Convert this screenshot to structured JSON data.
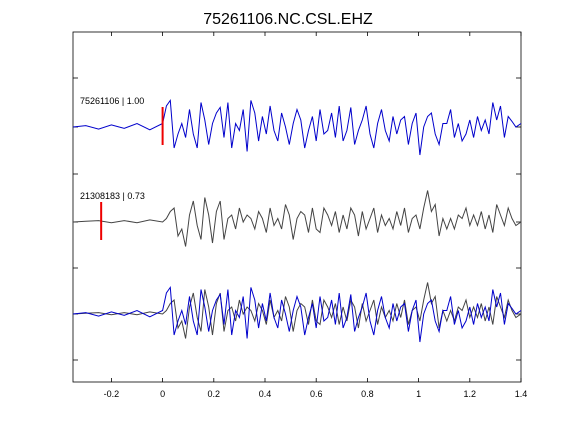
{
  "chart_data": {
    "type": "line",
    "title": "75261106.NC.CSL.EHZ",
    "xlabel": "",
    "ylabel": "",
    "xlim": [
      -0.35,
      1.4
    ],
    "x_ticks": [
      -0.2,
      0,
      0.2,
      0.4,
      0.6,
      0.8,
      1,
      1.2,
      1.4
    ],
    "x_tick_labels": [
      "-0.2",
      "0",
      "0.2",
      "0.4",
      "0.6",
      "0.8",
      "1",
      "1.2",
      "1.4"
    ],
    "grid": false,
    "legend": "none",
    "colors": {
      "primary": "#0000cc",
      "secondary": "#444444",
      "pick": "#ee0000",
      "frame": "#000000"
    },
    "traces": [
      {
        "label": "75261106 | 1.00",
        "pick_time": 0.0
      },
      {
        "label": "21308183 | 0.73",
        "pick_time": -0.24
      }
    ],
    "series": [
      {
        "color": "#0000cc",
        "x": [
          -0.35,
          -0.3,
          -0.25,
          -0.2,
          -0.15,
          -0.1,
          -0.05,
          0.0,
          0.015,
          0.03,
          0.045,
          0.06,
          0.075,
          0.09,
          0.105,
          0.12,
          0.135,
          0.15,
          0.165,
          0.18,
          0.195,
          0.21,
          0.225,
          0.24,
          0.255,
          0.27,
          0.285,
          0.3,
          0.315,
          0.33,
          0.345,
          0.36,
          0.375,
          0.39,
          0.405,
          0.42,
          0.435,
          0.45,
          0.465,
          0.48,
          0.495,
          0.51,
          0.525,
          0.54,
          0.555,
          0.57,
          0.585,
          0.6,
          0.615,
          0.63,
          0.645,
          0.66,
          0.675,
          0.69,
          0.705,
          0.72,
          0.735,
          0.75,
          0.765,
          0.78,
          0.795,
          0.81,
          0.825,
          0.84,
          0.855,
          0.87,
          0.885,
          0.9,
          0.915,
          0.93,
          0.945,
          0.96,
          0.975,
          0.99,
          1.005,
          1.02,
          1.035,
          1.05,
          1.065,
          1.08,
          1.095,
          1.11,
          1.125,
          1.14,
          1.155,
          1.17,
          1.185,
          1.2,
          1.215,
          1.23,
          1.245,
          1.26,
          1.275,
          1.29,
          1.305,
          1.32,
          1.335,
          1.35,
          1.365,
          1.38,
          1.4
        ],
        "y": [
          0.0,
          0.02,
          -0.03,
          0.03,
          -0.02,
          0.05,
          -0.04,
          0.05,
          0.3,
          0.38,
          -0.3,
          -0.1,
          0.05,
          -0.15,
          0.25,
          -0.1,
          -0.3,
          0.35,
          0.1,
          -0.25,
          0.05,
          0.2,
          0.28,
          -0.15,
          0.35,
          -0.3,
          0.05,
          -0.05,
          0.25,
          -0.35,
          0.38,
          0.2,
          -0.2,
          0.15,
          -0.1,
          0.3,
          -0.05,
          -0.2,
          0.2,
          0.0,
          -0.25,
          0.05,
          0.25,
          0.1,
          -0.3,
          -0.05,
          0.15,
          -0.2,
          0.25,
          -0.1,
          -0.05,
          0.2,
          -0.15,
          0.3,
          -0.2,
          -0.05,
          0.28,
          -0.25,
          -0.05,
          0.1,
          0.3,
          -0.1,
          -0.3,
          0.05,
          0.25,
          -0.05,
          -0.2,
          0.15,
          -0.1,
          0.1,
          0.15,
          -0.25,
          0.05,
          0.2,
          -0.4,
          0.0,
          0.15,
          0.2,
          -0.1,
          -0.25,
          0.05,
          0.05,
          0.25,
          -0.15,
          0.05,
          -0.2,
          -0.1,
          0.1,
          -0.15,
          0.15,
          -0.05,
          0.1,
          -0.1,
          0.35,
          0.1,
          0.3,
          -0.15,
          0.15,
          0.08,
          0.0,
          0.05
        ]
      },
      {
        "color": "#444444",
        "x": [
          -0.35,
          -0.3,
          -0.25,
          -0.2,
          -0.15,
          -0.1,
          -0.05,
          0.0,
          0.015,
          0.03,
          0.045,
          0.06,
          0.075,
          0.09,
          0.105,
          0.12,
          0.135,
          0.15,
          0.165,
          0.18,
          0.195,
          0.21,
          0.225,
          0.24,
          0.255,
          0.27,
          0.285,
          0.3,
          0.315,
          0.33,
          0.345,
          0.36,
          0.375,
          0.39,
          0.405,
          0.42,
          0.435,
          0.45,
          0.465,
          0.48,
          0.495,
          0.51,
          0.525,
          0.54,
          0.555,
          0.57,
          0.585,
          0.6,
          0.615,
          0.63,
          0.645,
          0.66,
          0.675,
          0.69,
          0.705,
          0.72,
          0.735,
          0.75,
          0.765,
          0.78,
          0.795,
          0.81,
          0.825,
          0.84,
          0.855,
          0.87,
          0.885,
          0.9,
          0.915,
          0.93,
          0.945,
          0.96,
          0.975,
          0.99,
          1.005,
          1.02,
          1.035,
          1.05,
          1.065,
          1.08,
          1.095,
          1.11,
          1.125,
          1.14,
          1.155,
          1.17,
          1.185,
          1.2,
          1.215,
          1.23,
          1.245,
          1.26,
          1.275,
          1.29,
          1.305,
          1.32,
          1.335,
          1.35,
          1.365,
          1.38,
          1.4
        ],
        "y": [
          0.0,
          0.01,
          0.02,
          -0.01,
          0.02,
          -0.01,
          0.03,
          0.0,
          0.05,
          0.15,
          0.2,
          -0.2,
          -0.1,
          -0.35,
          0.1,
          0.3,
          -0.05,
          -0.25,
          0.35,
          0.1,
          -0.3,
          0.15,
          0.3,
          -0.25,
          0.05,
          0.1,
          -0.1,
          0.2,
          0.0,
          0.1,
          0.05,
          -0.1,
          0.15,
          0.05,
          -0.15,
          0.2,
          -0.05,
          0.05,
          -0.1,
          0.25,
          0.1,
          -0.25,
          0.05,
          0.15,
          0.1,
          -0.15,
          0.2,
          -0.1,
          -0.15,
          0.2,
          0.1,
          -0.05,
          0.15,
          -0.15,
          0.1,
          -0.1,
          0.2,
          0.1,
          -0.2,
          0.15,
          -0.1,
          0.05,
          0.2,
          -0.15,
          0.1,
          -0.05,
          0.05,
          -0.1,
          0.15,
          -0.05,
          0.2,
          -0.15,
          0.05,
          0.1,
          -0.1,
          0.2,
          0.45,
          0.15,
          0.25,
          -0.2,
          0.05,
          -0.1,
          0.05,
          -0.1,
          0.1,
          0.05,
          0.2,
          -0.05,
          0.1,
          -0.05,
          0.15,
          -0.1,
          0.1,
          -0.15,
          0.25,
          0.1,
          -0.05,
          0.2,
          0.05,
          -0.05,
          0.0
        ]
      }
    ]
  }
}
